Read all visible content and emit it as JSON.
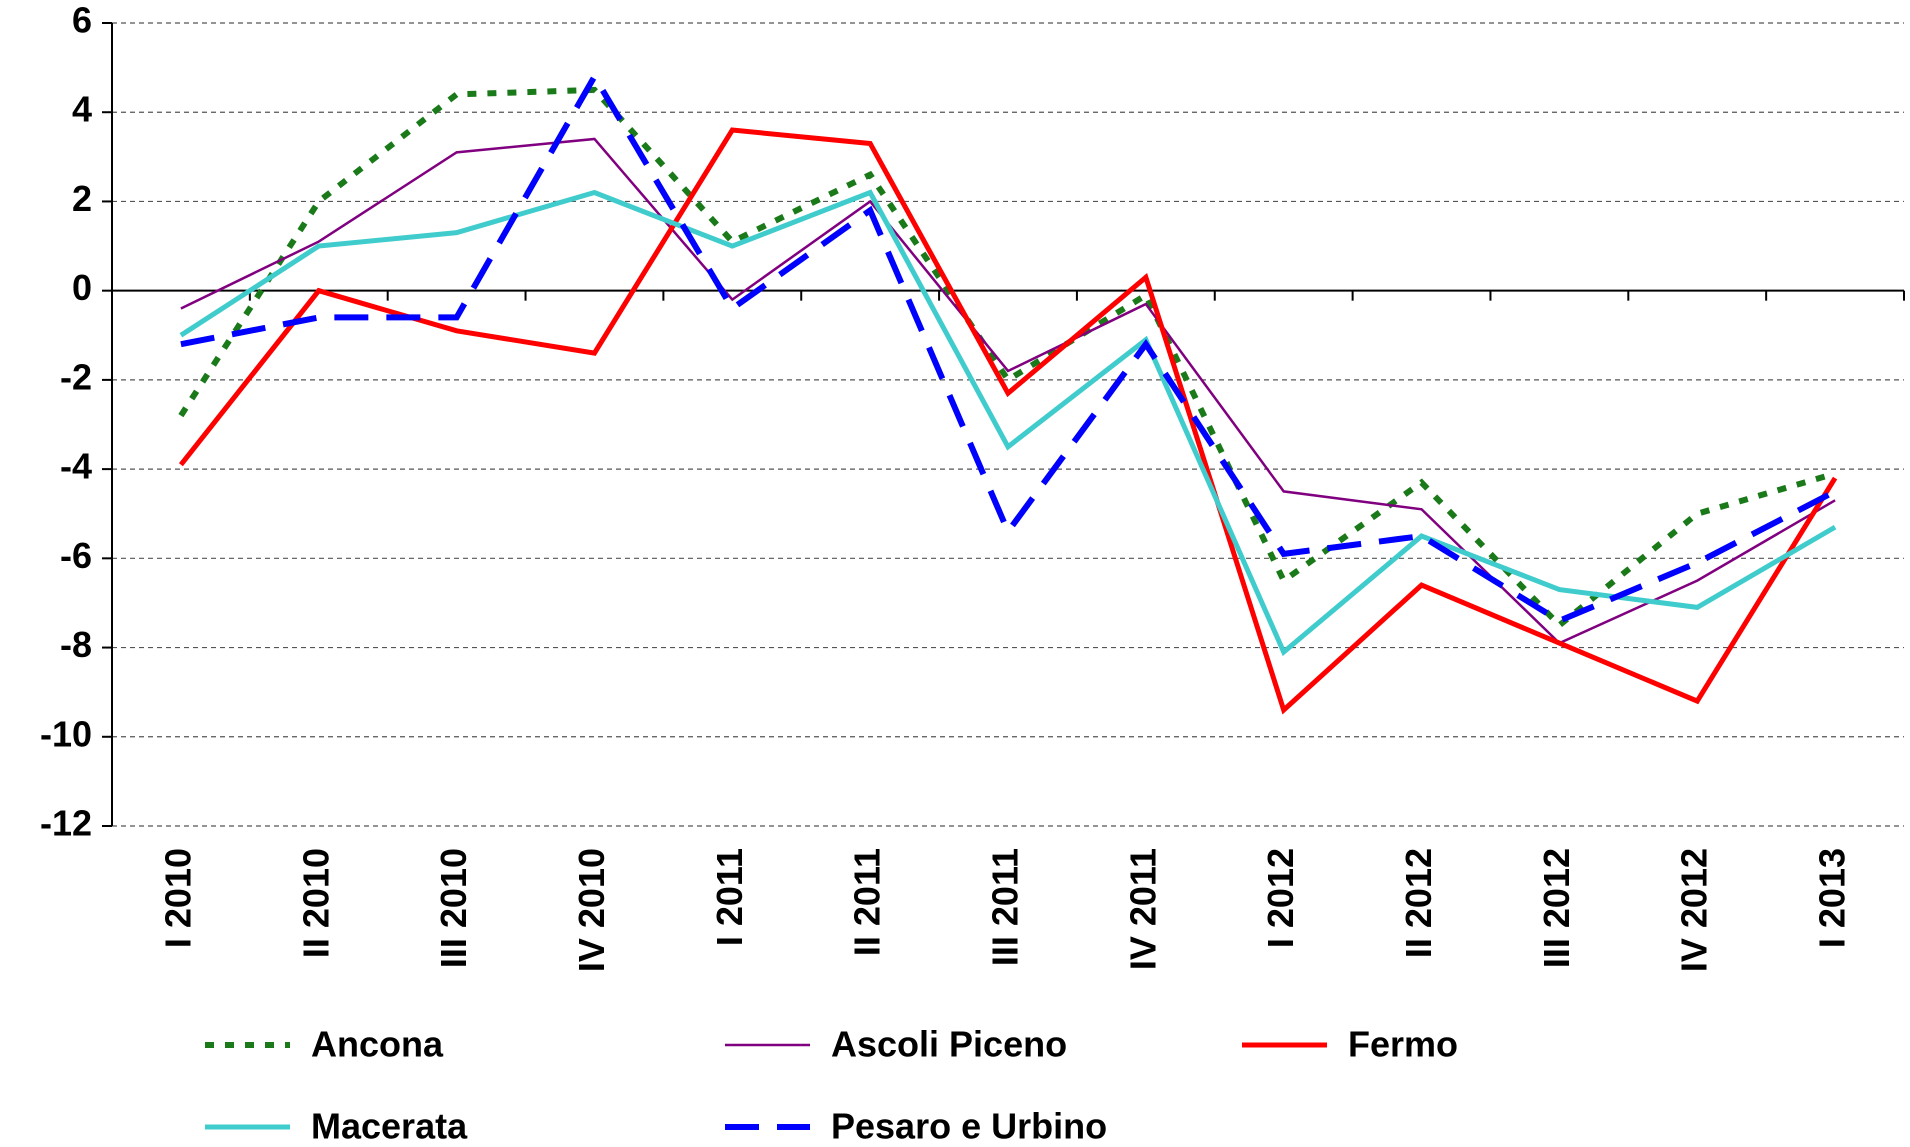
{
  "chart_data": {
    "type": "line",
    "categories": [
      "I 2010",
      "II 2010",
      "III 2010",
      "IV 2010",
      "I 2011",
      "II 2011",
      "III 2011",
      "IV 2011",
      "I 2012",
      "II 2012",
      "III 2012",
      "IV 2012",
      "I 2013"
    ],
    "ylim": [
      -12,
      6
    ],
    "yticks": [
      -12,
      -10,
      -8,
      -6,
      -4,
      -2,
      0,
      2,
      4,
      6
    ],
    "grid": true,
    "legend": "bottom",
    "series": [
      {
        "name": "Ancona",
        "color": "#1a7a1a",
        "line_style": "dotted",
        "values": [
          -2.8,
          2.0,
          4.4,
          4.5,
          1.1,
          2.6,
          -2.0,
          -0.1,
          -6.5,
          -4.3,
          -7.5,
          -5.0,
          -4.1
        ]
      },
      {
        "name": "Ascoli Piceno",
        "color": "#800080",
        "line_style": "thin",
        "values": [
          -0.4,
          1.1,
          3.1,
          3.4,
          -0.2,
          2.0,
          -1.8,
          -0.3,
          -4.5,
          -4.9,
          -7.9,
          -6.5,
          -4.7
        ]
      },
      {
        "name": "Fermo",
        "color": "#ff0000",
        "line_style": "solid",
        "values": [
          -3.9,
          0.0,
          -0.9,
          -1.4,
          3.6,
          3.3,
          -2.3,
          0.3,
          -9.4,
          -6.6,
          -7.9,
          -9.2,
          -4.2
        ]
      },
      {
        "name": "Macerata",
        "color": "#40cccc",
        "line_style": "solid",
        "values": [
          -1.0,
          1.0,
          1.3,
          2.2,
          1.0,
          2.2,
          -3.5,
          -1.1,
          -8.1,
          -5.5,
          -6.7,
          -7.1,
          -5.3
        ]
      },
      {
        "name": "Pesaro e Urbino",
        "color": "#0000ff",
        "line_style": "dashed",
        "values": [
          -1.2,
          -0.6,
          -0.6,
          4.8,
          -0.4,
          1.8,
          -5.4,
          -1.2,
          -5.9,
          -5.5,
          -7.4,
          -6.1,
          -4.5
        ]
      }
    ]
  }
}
